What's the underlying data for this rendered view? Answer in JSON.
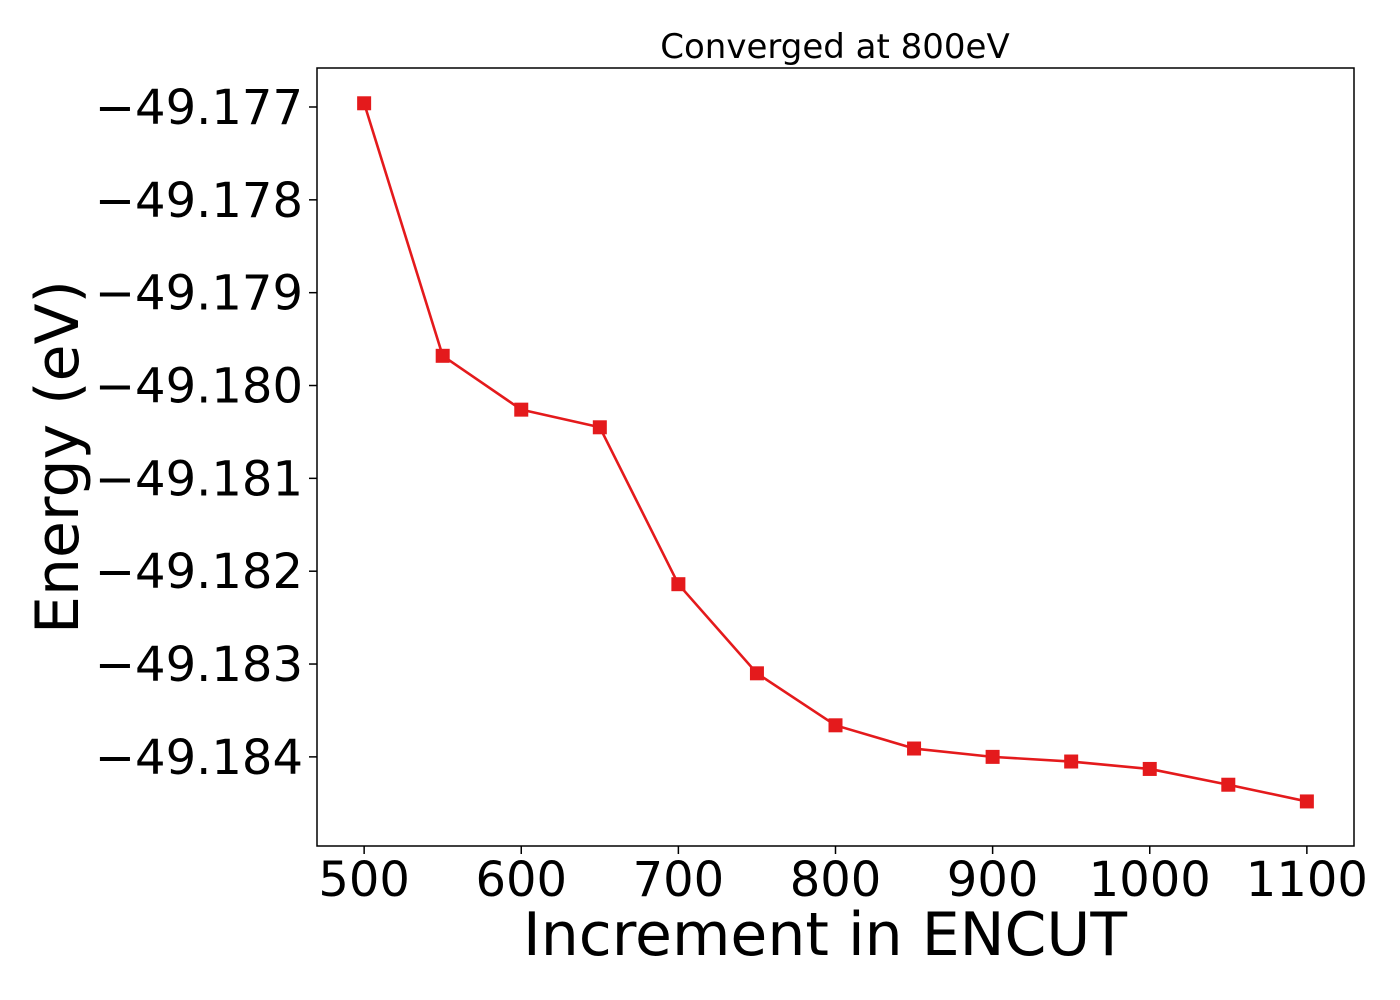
{
  "chart_data": {
    "type": "line",
    "title": "Converged at 800eV",
    "xlabel": "Increment in ENCUT",
    "ylabel": "Energy (eV)",
    "x": [
      500,
      550,
      600,
      650,
      700,
      750,
      800,
      850,
      900,
      950,
      1000,
      1050,
      1100
    ],
    "series": [
      {
        "values": [
          -49.17696,
          -49.17968,
          -49.18026,
          -49.18045,
          -49.18214,
          -49.1831,
          -49.18366,
          -49.18391,
          -49.184,
          -49.18405,
          -49.18413,
          -49.1843,
          -49.18448
        ],
        "color": "#e41a1c",
        "marker": "square"
      }
    ],
    "xlim": [
      470,
      1130
    ],
    "ylim": [
      -49.18496,
      -49.17658
    ],
    "xticks": [
      500,
      600,
      700,
      800,
      900,
      1000,
      1100
    ],
    "xtick_labels": [
      "500",
      "600",
      "700",
      "800",
      "900",
      "1000",
      "1100"
    ],
    "yticks": [
      -49.177,
      -49.178,
      -49.179,
      -49.18,
      -49.181,
      -49.182,
      -49.183,
      -49.184
    ],
    "ytick_labels": [
      "−49.177",
      "−49.178",
      "−49.179",
      "−49.180",
      "−49.181",
      "−49.182",
      "−49.183",
      "−49.184"
    ],
    "grid": false,
    "legend": "none"
  }
}
